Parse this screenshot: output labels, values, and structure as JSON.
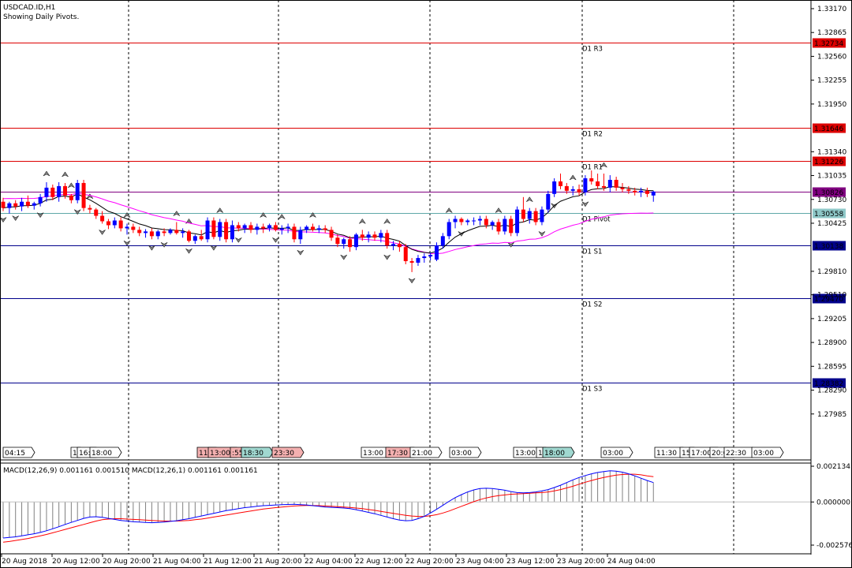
{
  "header": {
    "symbol": "USDCAD.ID,H1",
    "subtitle": "Showing Daily Pivots."
  },
  "colors": {
    "bull": "#0000ff",
    "bear": "#ff0000",
    "resistance": "#dd0000",
    "support": "#00008b",
    "pivot": "#5fa8a8",
    "ema_fast": "#000000",
    "ema_slow": "#ff00ff",
    "macd_line": "#0000ff",
    "signal_line": "#ff0000",
    "hist": "#808080",
    "pivot_highlight": "#800080",
    "session_pink": "#f4b0b0",
    "session_teal": "#a0d8d0"
  },
  "chart_data": {
    "type": "candlestick",
    "y_axis": {
      "range": [
        1.277,
        1.332
      ],
      "ticks": [
        "1.33170",
        "1.32865",
        "1.32560",
        "1.32255",
        "1.31950",
        "1.31340",
        "1.31035",
        "1.30730",
        "1.30425",
        "1.29810",
        "1.29510",
        "1.29205",
        "1.28900",
        "1.28595",
        "1.28290",
        "1.27985"
      ]
    },
    "x_labels": [
      "20 Aug 2018",
      "20 Aug 12:00",
      "20 Aug 20:00",
      "21 Aug 04:00",
      "21 Aug 12:00",
      "21 Aug 20:00",
      "22 Aug 04:00",
      "22 Aug 12:00",
      "22 Aug 20:00",
      "23 Aug 04:00",
      "23 Aug 12:00",
      "23 Aug 20:00",
      "24 Aug 04:00"
    ],
    "pivots": [
      {
        "name": "D1 R3",
        "value": 1.32734,
        "label": "1.32734",
        "kind": "resistance"
      },
      {
        "name": "D1 R2",
        "value": 1.31646,
        "label": "1.31646",
        "kind": "resistance"
      },
      {
        "name": "D1 R1",
        "value": 1.31226,
        "label": "1.31226",
        "kind": "resistance"
      },
      {
        "name": "",
        "value": 1.30826,
        "label": "1.30826",
        "kind": "current"
      },
      {
        "name": "D1 Pivot",
        "value": 1.30558,
        "label": "1.30558",
        "kind": "pivot"
      },
      {
        "name": "D1 S1",
        "value": 1.30138,
        "label": "1.30138",
        "kind": "support"
      },
      {
        "name": "D1 S2",
        "value": 1.2947,
        "label": "1.29470",
        "kind": "support"
      },
      {
        "name": "D1 S3",
        "value": 1.28382,
        "label": "1.28382",
        "kind": "support"
      }
    ],
    "candles": [
      [
        1.307,
        1.3075,
        1.3058,
        1.3062
      ],
      [
        1.3062,
        1.307,
        1.3055,
        1.3068
      ],
      [
        1.3068,
        1.3072,
        1.306,
        1.3064
      ],
      [
        1.3064,
        1.3075,
        1.3058,
        1.307
      ],
      [
        1.307,
        1.3078,
        1.3062,
        1.3065
      ],
      [
        1.3065,
        1.307,
        1.306,
        1.3068
      ],
      [
        1.3068,
        1.308,
        1.3064,
        1.3076
      ],
      [
        1.3076,
        1.3095,
        1.307,
        1.3088
      ],
      [
        1.3088,
        1.3092,
        1.3072,
        1.3076
      ],
      [
        1.3076,
        1.3095,
        1.307,
        1.309
      ],
      [
        1.309,
        1.3094,
        1.3074,
        1.3078
      ],
      [
        1.3078,
        1.308,
        1.3068,
        1.3072
      ],
      [
        1.3072,
        1.3098,
        1.3068,
        1.3094
      ],
      [
        1.3094,
        1.3098,
        1.3058,
        1.3062
      ],
      [
        1.3062,
        1.3066,
        1.3055,
        1.306
      ],
      [
        1.306,
        1.3062,
        1.3048,
        1.3052
      ],
      [
        1.3052,
        1.3058,
        1.3042,
        1.3045
      ],
      [
        1.3045,
        1.3048,
        1.3035,
        1.304
      ],
      [
        1.304,
        1.305,
        1.3036,
        1.3046
      ],
      [
        1.3046,
        1.305,
        1.3032,
        1.3036
      ],
      [
        1.3036,
        1.3042,
        1.3028,
        1.3038
      ],
      [
        1.3038,
        1.3042,
        1.303,
        1.3034
      ],
      [
        1.3034,
        1.3038,
        1.3026,
        1.303
      ],
      [
        1.303,
        1.3035,
        1.3024,
        1.3032
      ],
      [
        1.3032,
        1.3036,
        1.3022,
        1.3026
      ],
      [
        1.3026,
        1.3034,
        1.3022,
        1.3032
      ],
      [
        1.3032,
        1.3036,
        1.3026,
        1.303
      ],
      [
        1.303,
        1.3036,
        1.3028,
        1.3034
      ],
      [
        1.3034,
        1.3044,
        1.3028,
        1.303
      ],
      [
        1.303,
        1.3036,
        1.3024,
        1.3032
      ],
      [
        1.3032,
        1.3034,
        1.3018,
        1.302
      ],
      [
        1.302,
        1.3028,
        1.3016,
        1.3026
      ],
      [
        1.3026,
        1.3034,
        1.302,
        1.3022
      ],
      [
        1.3022,
        1.305,
        1.3018,
        1.3046
      ],
      [
        1.3046,
        1.305,
        1.3022,
        1.3025
      ],
      [
        1.3025,
        1.3048,
        1.302,
        1.3044
      ],
      [
        1.3044,
        1.3048,
        1.3018,
        1.3022
      ],
      [
        1.3022,
        1.3046,
        1.3018,
        1.304
      ],
      [
        1.304,
        1.3044,
        1.3032,
        1.3036
      ],
      [
        1.3036,
        1.3042,
        1.303,
        1.304
      ],
      [
        1.304,
        1.3044,
        1.303,
        1.3034
      ],
      [
        1.3034,
        1.3042,
        1.3028,
        1.3038
      ],
      [
        1.3038,
        1.3042,
        1.303,
        1.3036
      ],
      [
        1.3036,
        1.3042,
        1.3032,
        1.304
      ],
      [
        1.304,
        1.3044,
        1.3032,
        1.3034
      ],
      [
        1.3034,
        1.304,
        1.3028,
        1.3036
      ],
      [
        1.3036,
        1.3042,
        1.303,
        1.3038
      ],
      [
        1.3038,
        1.3042,
        1.3018,
        1.3022
      ],
      [
        1.3022,
        1.3038,
        1.3016,
        1.3034
      ],
      [
        1.3034,
        1.304,
        1.303,
        1.3038
      ],
      [
        1.3038,
        1.3042,
        1.3032,
        1.3034
      ],
      [
        1.3034,
        1.304,
        1.303,
        1.3036
      ],
      [
        1.3036,
        1.304,
        1.303,
        1.3034
      ],
      [
        1.3034,
        1.3038,
        1.302,
        1.3024
      ],
      [
        1.3024,
        1.3028,
        1.3012,
        1.3016
      ],
      [
        1.3016,
        1.3024,
        1.301,
        1.3022
      ],
      [
        1.3022,
        1.3026,
        1.3006,
        1.3012
      ],
      [
        1.3012,
        1.303,
        1.3008,
        1.3028
      ],
      [
        1.3028,
        1.3034,
        1.302,
        1.3024
      ],
      [
        1.3024,
        1.3032,
        1.3018,
        1.3028
      ],
      [
        1.3028,
        1.3032,
        1.302,
        1.3024
      ],
      [
        1.3024,
        1.3034,
        1.3018,
        1.303
      ],
      [
        1.303,
        1.3034,
        1.301,
        1.3014
      ],
      [
        1.3014,
        1.302,
        1.3008,
        1.3016
      ],
      [
        1.3016,
        1.302,
        1.3006,
        1.3012
      ],
      [
        1.3012,
        1.3016,
        1.299,
        1.2994
      ],
      [
        1.2994,
        1.2998,
        1.298,
        1.2992
      ],
      [
        1.2992,
        1.3002,
        1.2988,
        1.2998
      ],
      [
        1.2998,
        1.3004,
        1.2992,
        1.3
      ],
      [
        1.3,
        1.3005,
        1.2995,
        1.3002
      ],
      [
        1.2996,
        1.3018,
        1.2994,
        1.3014
      ],
      [
        1.3014,
        1.303,
        1.301,
        1.3026
      ],
      [
        1.3026,
        1.3048,
        1.3022,
        1.3044
      ],
      [
        1.3044,
        1.3052,
        1.3036,
        1.3048
      ],
      [
        1.3048,
        1.305,
        1.304,
        1.3044
      ],
      [
        1.3044,
        1.3048,
        1.304,
        1.3046
      ],
      [
        1.3046,
        1.305,
        1.304,
        1.3046
      ],
      [
        1.3046,
        1.3052,
        1.304,
        1.3048
      ],
      [
        1.3048,
        1.3052,
        1.3036,
        1.304
      ],
      [
        1.304,
        1.3046,
        1.3034,
        1.3044
      ],
      [
        1.3044,
        1.3048,
        1.3028,
        1.3032
      ],
      [
        1.3032,
        1.3052,
        1.3028,
        1.3048
      ],
      [
        1.3048,
        1.3052,
        1.3026,
        1.303
      ],
      [
        1.303,
        1.3064,
        1.3026,
        1.306
      ],
      [
        1.306,
        1.3076,
        1.3044,
        1.3048
      ],
      [
        1.3048,
        1.3062,
        1.3042,
        1.3058
      ],
      [
        1.3058,
        1.3062,
        1.304,
        1.3044
      ],
      [
        1.3044,
        1.3064,
        1.304,
        1.306
      ],
      [
        1.306,
        1.3084,
        1.3056,
        1.308
      ],
      [
        1.308,
        1.31,
        1.3076,
        1.3096
      ],
      [
        1.3096,
        1.3106,
        1.3086,
        1.309
      ],
      [
        1.309,
        1.3094,
        1.308,
        1.3084
      ],
      [
        1.3084,
        1.309,
        1.3078,
        1.3086
      ],
      [
        1.3086,
        1.3092,
        1.3078,
        1.3082
      ],
      [
        1.3082,
        1.3104,
        1.3078,
        1.31
      ],
      [
        1.31,
        1.311,
        1.3092,
        1.3096
      ],
      [
        1.3096,
        1.3106,
        1.3086,
        1.309
      ],
      [
        1.309,
        1.3106,
        1.3084,
        1.3088
      ],
      [
        1.3088,
        1.3104,
        1.3082,
        1.3098
      ],
      [
        1.3098,
        1.3102,
        1.3084,
        1.3088
      ],
      [
        1.3088,
        1.3094,
        1.3082,
        1.3086
      ],
      [
        1.3086,
        1.309,
        1.308,
        1.3084
      ],
      [
        1.3084,
        1.3088,
        1.3078,
        1.3082
      ],
      [
        1.3082,
        1.3088,
        1.3076,
        1.3084
      ],
      [
        1.3084,
        1.3088,
        1.3076,
        1.308
      ],
      [
        1.3078,
        1.3084,
        1.307,
        1.3083
      ]
    ],
    "fractals_up": [
      7,
      10,
      11,
      14,
      20,
      28,
      30,
      35,
      42,
      45,
      50,
      58,
      62,
      72,
      80,
      85,
      92,
      97
    ],
    "fractals_down": [
      0,
      2,
      6,
      12,
      16,
      20,
      24,
      26,
      30,
      34,
      38,
      44,
      48,
      55,
      62,
      66,
      74,
      82,
      87,
      89,
      94
    ],
    "session_labels": [
      {
        "text": "04:15",
        "style": "plain"
      },
      {
        "text": "1",
        "style": "plain"
      },
      {
        "text": "16:",
        "style": "plain"
      },
      {
        "text": "18:00",
        "style": "plain"
      },
      {
        "text": "11:",
        "style": "pink"
      },
      {
        "text": "13:00",
        "style": "pink"
      },
      {
        "text": ":55",
        "style": "pink"
      },
      {
        "text": "18:30",
        "style": "teal"
      },
      {
        "text": "23:30",
        "style": "pink"
      },
      {
        "text": "13:00",
        "style": "plain"
      },
      {
        "text": "17:30",
        "style": "pink"
      },
      {
        "text": "21:00",
        "style": "plain"
      },
      {
        "text": "03:00",
        "style": "plain"
      },
      {
        "text": "13:00",
        "style": "plain"
      },
      {
        "text": "1",
        "style": "plain"
      },
      {
        "text": "18:00",
        "style": "teal"
      },
      {
        "text": "03:00",
        "style": "plain"
      },
      {
        "text": "11:30",
        "style": "plain"
      },
      {
        "text": "15",
        "style": "plain"
      },
      {
        "text": "17:00",
        "style": "plain"
      },
      {
        "text": "20:0",
        "style": "plain"
      },
      {
        "text": "22:30",
        "style": "plain"
      },
      {
        "text": "03:00",
        "style": "plain"
      }
    ],
    "macd": {
      "label": "MACD(12,26,9) 0.001161 0.001510 MACD(12,26,1) 0.001161 0.001161",
      "y_ticks": [
        "0.002134",
        "0.000000",
        "-0.002576"
      ],
      "range": [
        -0.002576,
        0.002134
      ],
      "macd_line": [
        -0.00215,
        -0.00212,
        -0.00208,
        -0.00202,
        -0.00196,
        -0.0019,
        -0.00182,
        -0.00172,
        -0.0016,
        -0.00148,
        -0.00134,
        -0.00122,
        -0.0011,
        -0.00098,
        -0.0009,
        -0.00088,
        -0.00092,
        -0.00098,
        -0.00104,
        -0.0011,
        -0.00114,
        -0.00118,
        -0.0012,
        -0.00122,
        -0.00124,
        -0.00122,
        -0.0012,
        -0.00116,
        -0.00112,
        -0.00106,
        -0.001,
        -0.00092,
        -0.00084,
        -0.00076,
        -0.00068,
        -0.0006,
        -0.00052,
        -0.00046,
        -0.0004,
        -0.00034,
        -0.0003,
        -0.00026,
        -0.00022,
        -0.0002,
        -0.00018,
        -0.00016,
        -0.00015,
        -0.00014,
        -0.00016,
        -0.00018,
        -0.00022,
        -0.00026,
        -0.0003,
        -0.00032,
        -0.00034,
        -0.00036,
        -0.0004,
        -0.00046,
        -0.00054,
        -0.00062,
        -0.0007,
        -0.0008,
        -0.0009,
        -0.001,
        -0.00108,
        -0.00112,
        -0.0011,
        -0.001,
        -0.00086,
        -0.00066,
        -0.00044,
        -0.0002,
        4e-05,
        0.00026,
        0.00044,
        0.0006,
        0.00072,
        0.0008,
        0.00082,
        0.0008,
        0.00076,
        0.0007,
        0.00062,
        0.00056,
        0.00054,
        0.00056,
        0.0006,
        0.00066,
        0.00074,
        0.00086,
        0.001,
        0.00116,
        0.00132,
        0.00146,
        0.00158,
        0.00168,
        0.00176,
        0.00182,
        0.00186,
        0.00184,
        0.00178,
        0.00168,
        0.00156,
        0.00142,
        0.00128,
        0.00116
      ],
      "signal_line": [
        -0.0024,
        -0.00236,
        -0.0023,
        -0.00224,
        -0.00218,
        -0.0021,
        -0.00202,
        -0.00194,
        -0.00184,
        -0.00174,
        -0.00164,
        -0.00154,
        -0.00144,
        -0.00134,
        -0.00124,
        -0.00114,
        -0.00106,
        -0.00102,
        -0.001,
        -0.001,
        -0.00102,
        -0.00104,
        -0.00106,
        -0.00108,
        -0.0011,
        -0.00112,
        -0.00114,
        -0.00114,
        -0.00114,
        -0.00112,
        -0.0011,
        -0.00106,
        -0.00102,
        -0.00096,
        -0.0009,
        -0.00084,
        -0.00078,
        -0.00072,
        -0.00066,
        -0.0006,
        -0.00054,
        -0.00048,
        -0.00042,
        -0.00038,
        -0.00034,
        -0.0003,
        -0.00027,
        -0.00024,
        -0.00022,
        -0.00021,
        -0.00021,
        -0.00022,
        -0.00024,
        -0.00026,
        -0.00028,
        -0.0003,
        -0.00033,
        -0.00036,
        -0.0004,
        -0.00045,
        -0.0005,
        -0.00056,
        -0.00062,
        -0.00068,
        -0.00074,
        -0.0008,
        -0.00084,
        -0.00086,
        -0.00086,
        -0.00082,
        -0.00076,
        -0.00066,
        -0.00054,
        -0.0004,
        -0.00026,
        -0.00012,
        2e-05,
        0.00014,
        0.00024,
        0.00032,
        0.00038,
        0.00042,
        0.00046,
        0.00048,
        0.0005,
        0.00052,
        0.00054,
        0.00056,
        0.0006,
        0.00066,
        0.00074,
        0.00084,
        0.00094,
        0.00106,
        0.00118,
        0.00128,
        0.00138,
        0.00146,
        0.00154,
        0.0016,
        0.00164,
        0.00166,
        0.00166,
        0.00162,
        0.00156,
        0.00151
      ]
    }
  }
}
